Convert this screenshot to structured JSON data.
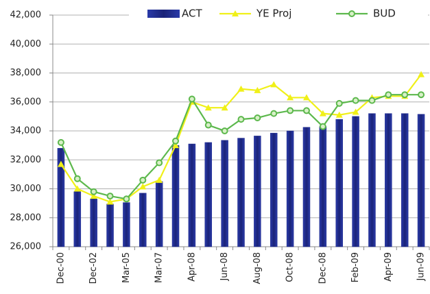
{
  "chart_data": {
    "type": "bar-line",
    "categories": [
      "Dec-00",
      null,
      "Dec-02",
      null,
      "Mar-05",
      null,
      "Mar-07",
      null,
      "Apr-08",
      null,
      "Jun-08",
      null,
      "Aug-08",
      null,
      "Oct-08",
      null,
      "Dec-08",
      null,
      "Feb-09",
      null,
      "Apr-09",
      null,
      "Jun-09"
    ],
    "series": [
      {
        "name": "ACT",
        "type": "bar",
        "color": "#1f2a8c",
        "values": [
          32800,
          29800,
          29300,
          28950,
          29050,
          29700,
          30500,
          33000,
          33100,
          33200,
          33350,
          33500,
          33650,
          33850,
          34000,
          34250,
          34300,
          34800,
          35000,
          35200,
          35200,
          35200,
          35150
        ]
      },
      {
        "name": "YE Proj",
        "type": "line",
        "marker": "triangle",
        "color": "#f0f018",
        "values": [
          31700,
          30000,
          29500,
          29100,
          29300,
          30150,
          30600,
          33000,
          36000,
          35600,
          35600,
          36900,
          36800,
          37200,
          36300,
          36300,
          35200,
          35100,
          35300,
          36300,
          36400,
          36400,
          37900
        ]
      },
      {
        "name": "BUD",
        "type": "line",
        "marker": "circle",
        "color": "#5cb84c",
        "values": [
          33200,
          30700,
          29800,
          29500,
          29300,
          30600,
          31800,
          33300,
          36200,
          34400,
          34000,
          34800,
          34900,
          35200,
          35400,
          35400,
          34300,
          35900,
          36100,
          36100,
          36500,
          36500,
          36500
        ]
      }
    ],
    "ylim": [
      26000,
      42000
    ],
    "yticks": [
      {
        "value": 26000,
        "label": "26,000"
      },
      {
        "value": 28000,
        "label": "28,000"
      },
      {
        "value": 30000,
        "label": "30,000"
      },
      {
        "value": 32000,
        "label": "32,000"
      },
      {
        "value": 34000,
        "label": "34,000"
      },
      {
        "value": 36000,
        "label": "36,000"
      },
      {
        "value": 38000,
        "label": "38,000"
      },
      {
        "value": 40000,
        "label": "40,000"
      },
      {
        "value": 42000,
        "label": "42,000"
      }
    ],
    "grid": true,
    "legend": "top"
  }
}
